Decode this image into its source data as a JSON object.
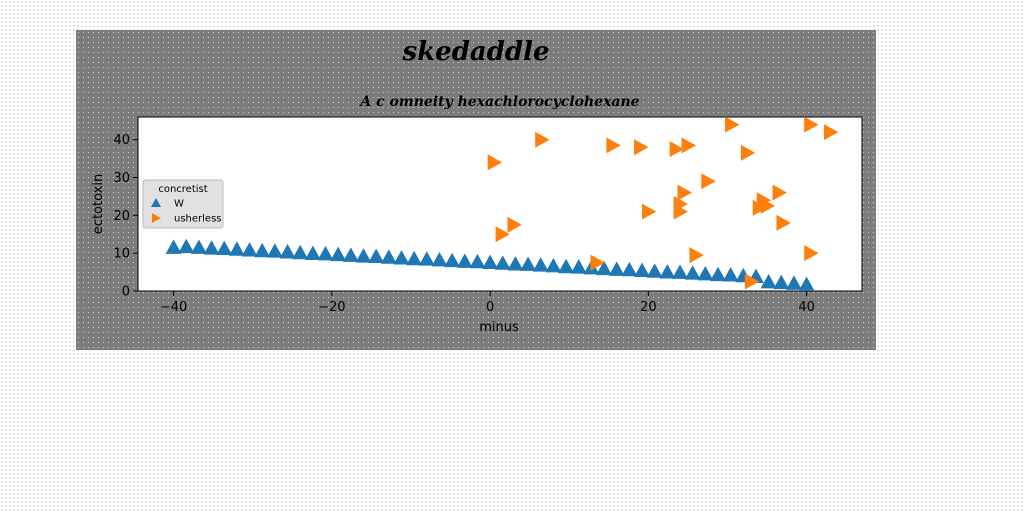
{
  "chart_data": {
    "type": "scatter",
    "suptitle": "skedaddle",
    "title": "A c omneity hexachlorocyclohexane",
    "xlabel": "minus",
    "ylabel": "ectotoxin",
    "xlim": [
      -44.5,
      47
    ],
    "ylim": [
      0,
      46
    ],
    "xticks": [
      -40,
      -20,
      0,
      20,
      40
    ],
    "yticks": [
      0,
      10,
      20,
      30,
      40
    ],
    "grid": false,
    "legend": {
      "title": "concretist",
      "placement": "center-left"
    },
    "series": [
      {
        "name": "W",
        "marker": "triangle-up",
        "color": "#1f77b4",
        "x": [
          -40,
          -38.4,
          -36.8,
          -35.2,
          -33.6,
          -32,
          -30.4,
          -28.8,
          -27.2,
          -25.6,
          -24,
          -22.4,
          -20.8,
          -19.2,
          -17.6,
          -16,
          -14.4,
          -12.8,
          -11.2,
          -9.6,
          -8,
          -6.4,
          -4.8,
          -3.2,
          -1.6,
          0,
          1.6,
          3.2,
          4.8,
          6.4,
          8,
          9.6,
          11.2,
          12.8,
          14.4,
          16,
          17.6,
          19.2,
          20.8,
          22.4,
          24,
          25.6,
          27.2,
          28.8,
          30.4,
          32,
          33.6,
          35.2,
          36.8,
          38.4,
          40
        ],
        "y": [
          11.5,
          11.7,
          11.5,
          11.3,
          11.2,
          11,
          10.8,
          10.6,
          10.5,
          10.3,
          10.1,
          9.9,
          9.8,
          9.6,
          9.4,
          9.2,
          9.1,
          8.9,
          8.7,
          8.5,
          8.4,
          8.2,
          8,
          7.8,
          7.7,
          7.5,
          7.3,
          7.1,
          7,
          6.8,
          6.6,
          6.4,
          6.3,
          6.1,
          5.9,
          5.7,
          5.6,
          5.4,
          5.2,
          5,
          4.9,
          4.7,
          4.5,
          4.3,
          4.2,
          4,
          3.8,
          2.4,
          2.2,
          2,
          1.7
        ]
      },
      {
        "name": "usherless",
        "marker": "triangle-right",
        "color": "#ff7f0e",
        "x": [
          0.5,
          1.5,
          3,
          6.5,
          13.5,
          15.5,
          19,
          20,
          23.5,
          24,
          24,
          24.5,
          25,
          26,
          27.5,
          30.5,
          32.5,
          33,
          34,
          34.5,
          35,
          36.5,
          37,
          40.5,
          40.5,
          43
        ],
        "y": [
          34,
          15,
          17.5,
          40,
          7.5,
          38.5,
          38,
          21,
          37.5,
          21,
          23,
          26,
          38.5,
          9.5,
          29,
          44,
          36.5,
          2.5,
          22,
          24,
          22.5,
          26,
          18,
          10,
          44,
          42
        ]
      }
    ]
  }
}
